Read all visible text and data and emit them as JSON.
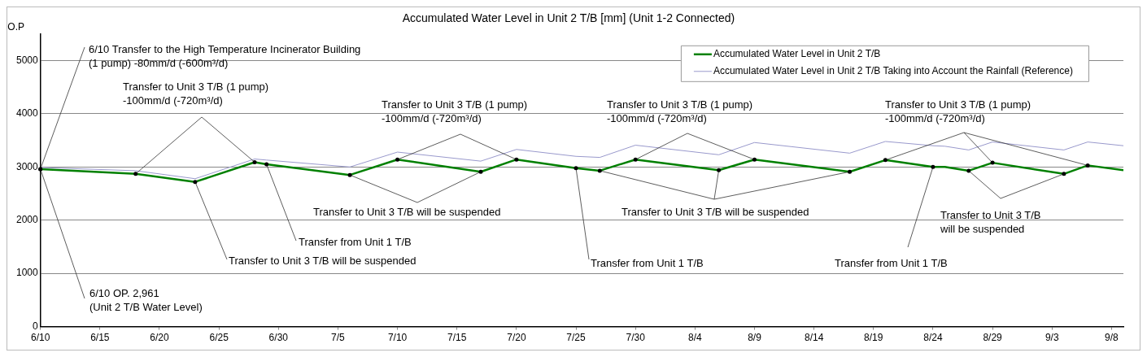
{
  "chart_data": {
    "type": "line",
    "title": "Accumulated Water Level in Unit 2 T/B [mm] (Unit 1-2 Connected)",
    "ylabel": "O.P",
    "x": [
      "--06-10",
      "--06-18",
      "--06-23",
      "--06-28",
      "--06-29",
      "--07-06",
      "--07-10",
      "--07-17",
      "--07-20",
      "--07-25",
      "--07-27",
      "--07-30",
      "--08-06",
      "--08-09",
      "--08-17",
      "--08-20",
      "--08-24",
      "--08-25",
      "--08-27",
      "--08-29",
      "--09-04",
      "--09-06",
      "--09-09"
    ],
    "series": [
      {
        "name": "Accumulated Water Level in Unit 2 T/B",
        "color": "#008000",
        "values": [
          2961,
          2870,
          2720,
          3090,
          3050,
          2850,
          3140,
          2910,
          3140,
          2980,
          2930,
          3140,
          2940,
          3140,
          2910,
          3130,
          3000,
          3000,
          2930,
          3080,
          2870,
          3030,
          2940
        ]
      },
      {
        "name": "Accumulated Water Level in Unit 2 T/B Taking into Account the Rainfall (Reference)",
        "color": "#9999cc",
        "values": [
          2990,
          2930,
          2780,
          3150,
          3130,
          3000,
          3280,
          3110,
          3330,
          3200,
          3180,
          3410,
          3230,
          3460,
          3260,
          3480,
          3400,
          3390,
          3320,
          3470,
          3320,
          3470,
          3400
        ]
      }
    ],
    "xlim": [
      "--06-10",
      "--09-09"
    ],
    "xticks": [
      {
        "value": "--06-10",
        "label": "6/10"
      },
      {
        "value": "--06-15",
        "label": "6/15"
      },
      {
        "value": "--06-20",
        "label": "6/20"
      },
      {
        "value": "--06-25",
        "label": "6/25"
      },
      {
        "value": "--06-30",
        "label": "6/30"
      },
      {
        "value": "--07-05",
        "label": "7/5"
      },
      {
        "value": "--07-10",
        "label": "7/10"
      },
      {
        "value": "--07-15",
        "label": "7/15"
      },
      {
        "value": "--07-20",
        "label": "7/20"
      },
      {
        "value": "--07-25",
        "label": "7/25"
      },
      {
        "value": "--07-30",
        "label": "7/30"
      },
      {
        "value": "--08-04",
        "label": "8/4"
      },
      {
        "value": "--08-09",
        "label": "8/9"
      },
      {
        "value": "--08-14",
        "label": "8/14"
      },
      {
        "value": "--08-19",
        "label": "8/19"
      },
      {
        "value": "--08-24",
        "label": "8/24"
      },
      {
        "value": "--08-29",
        "label": "8/29"
      },
      {
        "value": "--09-03",
        "label": "9/3"
      },
      {
        "value": "--09-08",
        "label": "9/8"
      }
    ],
    "ylim": [
      0,
      5500
    ],
    "yticks": [
      0,
      1000,
      2000,
      3000,
      4000,
      5000
    ],
    "grid": "y",
    "legend": "top right",
    "marker": "none",
    "line_style": "solid",
    "annotations": [
      {
        "text": "6/10 Transfer to the High Temperature Incinerator Building\n(1 pump) -80mm/d (-600m³/d)",
        "x": "--06-10",
        "y": 2961
      },
      {
        "text": "6/10 OP. 2,961\n(Unit 2 T/B Water Level)",
        "x": "--06-10",
        "y": 2961
      },
      {
        "text": "Transfer to Unit 3 T/B (1 pump)\n-100mm/d (-720m³/d)",
        "x": "--06-18",
        "y": 2870
      },
      {
        "text": "Transfer to Unit 3 T/B will be suspended",
        "x": "--06-23",
        "y": 2720
      },
      {
        "text": "Transfer from Unit 1 T/B",
        "x": "--06-29",
        "y": 3050
      },
      {
        "text": "Transfer to Unit 3 T/B (1 pump)\n-100mm/d (-720m³/d)",
        "x": "--07-10",
        "y": 3140
      },
      {
        "text": "Transfer to Unit 3 T/B will be suspended",
        "x": "--07-06",
        "y": 2850
      },
      {
        "text": "Transfer from Unit 1 T/B",
        "x": "--07-25",
        "y": 2980
      },
      {
        "text": "Transfer to Unit 3 T/B (1 pump)\n-100mm/d (-720m³/d)",
        "x": "--07-30",
        "y": 3140
      },
      {
        "text": "Transfer to Unit 3 T/B will be suspended",
        "x": "--07-27",
        "y": 2930
      },
      {
        "text": "Transfer to Unit 3 T/B (1 pump)\n-100mm/d (-720m³/d)",
        "x": "--08-20",
        "y": 3130
      },
      {
        "text": "Transfer from Unit 1 T/B",
        "x": "--08-24",
        "y": 3000
      },
      {
        "text": "Transfer to Unit 3 T/B\nwill be suspended",
        "x": "--08-27",
        "y": 2930
      }
    ]
  }
}
